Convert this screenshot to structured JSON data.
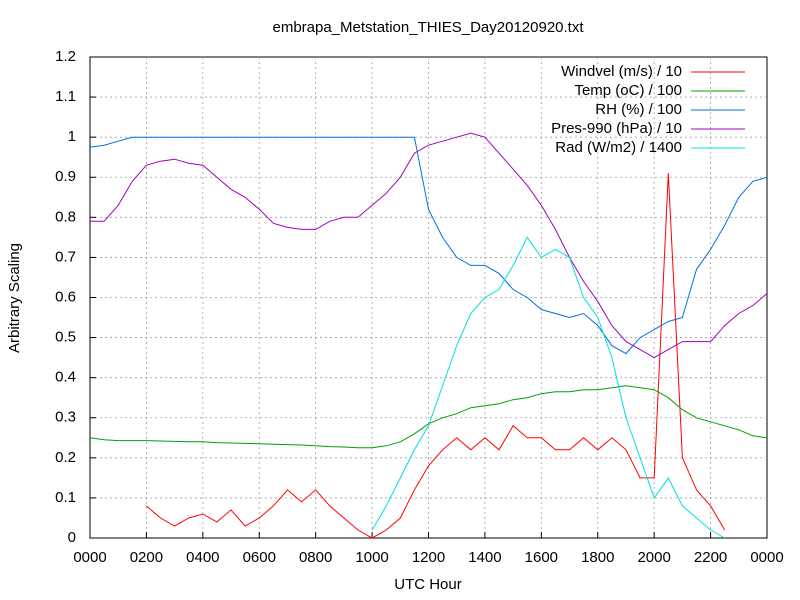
{
  "chart_data": {
    "type": "line",
    "title": "embrapa_Metstation_THIES_Day20120920.txt",
    "x_label": "UTC Hour",
    "y_label": "Arbitrary Scaling",
    "x": [
      0,
      0.5,
      1,
      1.5,
      2,
      2.5,
      3,
      3.5,
      4,
      4.5,
      5,
      5.5,
      6,
      6.5,
      7,
      7.5,
      8,
      8.5,
      9,
      9.5,
      10,
      10.5,
      11,
      11.5,
      12,
      12.5,
      13,
      13.5,
      14,
      14.5,
      15,
      15.5,
      16,
      16.5,
      17,
      17.5,
      18,
      18.5,
      19,
      19.5,
      20,
      20.5,
      21,
      21.5,
      22,
      22.5,
      23,
      23.5,
      24
    ],
    "xlim": [
      0,
      24
    ],
    "xticks": [
      {
        "value": 0,
        "label": "0000"
      },
      {
        "value": 2,
        "label": "0200"
      },
      {
        "value": 4,
        "label": "0400"
      },
      {
        "value": 6,
        "label": "0600"
      },
      {
        "value": 8,
        "label": "0800"
      },
      {
        "value": 10,
        "label": "1000"
      },
      {
        "value": 12,
        "label": "1200"
      },
      {
        "value": 14,
        "label": "1400"
      },
      {
        "value": 16,
        "label": "1600"
      },
      {
        "value": 18,
        "label": "1800"
      },
      {
        "value": 20,
        "label": "2000"
      },
      {
        "value": 22,
        "label": "2200"
      },
      {
        "value": 24,
        "label": "0000"
      }
    ],
    "ylim": [
      0,
      1.2
    ],
    "yticks": [
      0,
      0.1,
      0.2,
      0.3,
      0.4,
      0.5,
      0.6,
      0.7,
      0.8,
      0.9,
      1,
      1.1,
      1.2
    ],
    "grid": true,
    "legend": "top-right",
    "series": [
      {
        "name": "Windvel (m/s) / 10",
        "color": "#ff0000",
        "values": [
          null,
          null,
          null,
          null,
          0.08,
          0.05,
          0.03,
          0.05,
          0.06,
          0.04,
          0.07,
          0.03,
          0.05,
          0.08,
          0.12,
          0.09,
          0.12,
          0.08,
          0.05,
          0.02,
          0,
          0.02,
          0.05,
          0.12,
          0.18,
          0.22,
          0.25,
          0.22,
          0.25,
          0.22,
          0.28,
          0.25,
          0.25,
          0.22,
          0.22,
          0.25,
          0.22,
          0.25,
          0.22,
          0.15,
          0.15,
          0.91,
          0.2,
          0.12,
          0.08,
          0.02,
          null,
          null,
          null
        ]
      },
      {
        "name": "Temp (oC) / 100",
        "color": "#00a000",
        "values": [
          0.25,
          0.245,
          0.243,
          0.243,
          0.243,
          0.242,
          0.241,
          0.24,
          0.24,
          0.238,
          0.237,
          0.236,
          0.235,
          0.234,
          0.233,
          0.232,
          0.23,
          0.228,
          0.227,
          0.225,
          0.225,
          0.23,
          0.24,
          0.26,
          0.285,
          0.3,
          0.31,
          0.325,
          0.33,
          0.335,
          0.345,
          0.35,
          0.36,
          0.365,
          0.365,
          0.37,
          0.37,
          0.375,
          0.38,
          0.375,
          0.37,
          0.35,
          0.32,
          0.3,
          0.29,
          0.28,
          0.27,
          0.255,
          0.25
        ]
      },
      {
        "name": "RH (%) / 100",
        "color": "#0070e0",
        "values": [
          0.975,
          0.98,
          0.99,
          1,
          1,
          1,
          1,
          1,
          1,
          1,
          1,
          1,
          1,
          1,
          1,
          1,
          1,
          1,
          1,
          1,
          1,
          1,
          1,
          1,
          0.82,
          0.75,
          0.7,
          0.68,
          0.68,
          0.66,
          0.62,
          0.6,
          0.57,
          0.56,
          0.55,
          0.56,
          0.53,
          0.48,
          0.46,
          0.5,
          0.52,
          0.54,
          0.55,
          0.67,
          0.72,
          0.78,
          0.85,
          0.89,
          0.9
        ]
      },
      {
        "name": "Pres-990 (hPa) / 10",
        "color": "#a000c0",
        "values": [
          0.79,
          0.79,
          0.83,
          0.89,
          0.93,
          0.94,
          0.945,
          0.935,
          0.93,
          0.9,
          0.87,
          0.85,
          0.82,
          0.785,
          0.775,
          0.77,
          0.77,
          0.79,
          0.8,
          0.8,
          0.83,
          0.86,
          0.9,
          0.96,
          0.98,
          0.99,
          1,
          1.01,
          1,
          0.96,
          0.92,
          0.88,
          0.83,
          0.77,
          0.7,
          0.64,
          0.59,
          0.53,
          0.49,
          0.47,
          0.45,
          0.47,
          0.49,
          0.49,
          0.49,
          0.53,
          0.56,
          0.58,
          0.61
        ]
      },
      {
        "name": "Rad (W/m2) / 1400",
        "color": "#00e0e0",
        "values": [
          null,
          null,
          null,
          null,
          null,
          null,
          null,
          null,
          null,
          null,
          null,
          null,
          null,
          null,
          null,
          null,
          null,
          null,
          null,
          null,
          0.02,
          0.08,
          0.15,
          0.22,
          0.28,
          0.38,
          0.48,
          0.56,
          0.6,
          0.62,
          0.68,
          0.75,
          0.7,
          0.72,
          0.7,
          0.6,
          0.55,
          0.45,
          0.3,
          0.2,
          0.1,
          0.15,
          0.08,
          0.05,
          0.02,
          0,
          null,
          null,
          null
        ]
      }
    ]
  }
}
